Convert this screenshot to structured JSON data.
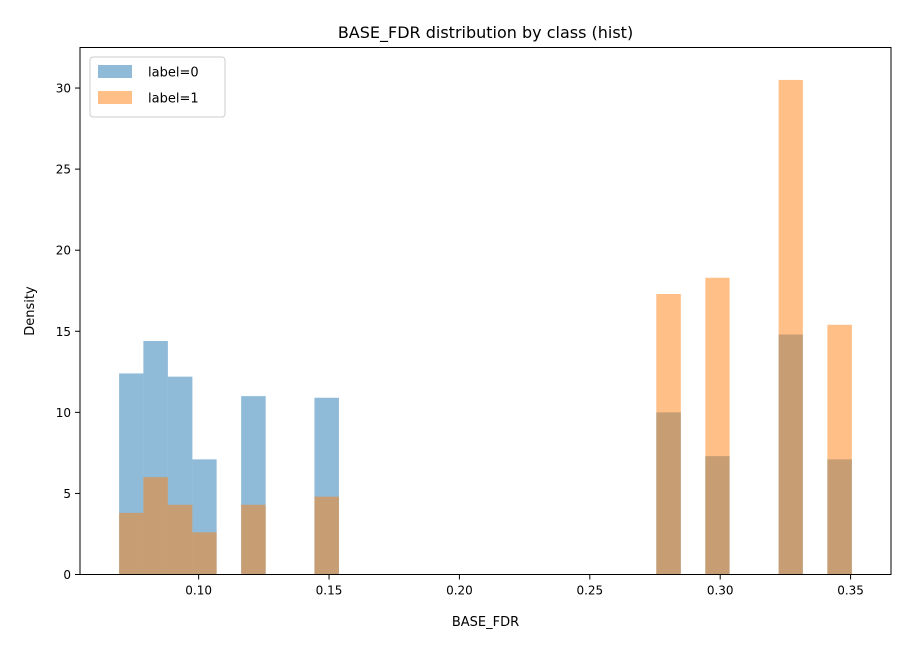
{
  "chart_data": {
    "type": "bar",
    "title": "BASE_FDR distribution by class (hist)",
    "xlabel": "BASE_FDR",
    "ylabel": "Density",
    "xlim": [
      0.0545,
      0.3655
    ],
    "ylim": [
      0,
      32.5
    ],
    "xticks": [
      0.1,
      0.15,
      0.2,
      0.25,
      0.3,
      0.35
    ],
    "xtick_labels": [
      "0.10",
      "0.15",
      "0.20",
      "0.25",
      "0.30",
      "0.35"
    ],
    "yticks": [
      0,
      5,
      10,
      15,
      20,
      25,
      30
    ],
    "ytick_labels": [
      "0",
      "5",
      "10",
      "15",
      "20",
      "25",
      "30"
    ],
    "grid": false,
    "legend_position": "top-left",
    "bin_edges": [
      0.0695,
      0.0788,
      0.0882,
      0.0976,
      0.1069,
      0.1163,
      0.1257,
      0.135,
      0.1444,
      0.1538,
      0.1631,
      0.1725,
      0.1819,
      0.1912,
      0.2006,
      0.21,
      0.2193,
      0.2287,
      0.2381,
      0.2474,
      0.2568,
      0.2662,
      0.2755,
      0.2849,
      0.2943,
      0.3036,
      0.313,
      0.3224,
      0.3317,
      0.3411,
      0.3505
    ],
    "series": [
      {
        "name": "label=0",
        "color": "#1f77b4",
        "values": [
          12.4,
          14.4,
          12.2,
          7.1,
          0,
          11.0,
          0,
          0,
          10.9,
          0,
          0,
          0,
          0,
          0,
          0,
          0,
          0,
          0,
          0,
          0,
          0,
          0,
          10.0,
          0,
          7.3,
          0,
          0,
          14.8,
          0,
          7.1
        ]
      },
      {
        "name": "label=1",
        "color": "#ff7f0e",
        "values": [
          3.8,
          6.0,
          4.3,
          2.6,
          0,
          4.3,
          0,
          0,
          4.8,
          0,
          0,
          0,
          0,
          0,
          0,
          0,
          0,
          0,
          0,
          0,
          0,
          0,
          17.3,
          0,
          18.3,
          0,
          0,
          30.5,
          0,
          15.4
        ]
      }
    ]
  }
}
